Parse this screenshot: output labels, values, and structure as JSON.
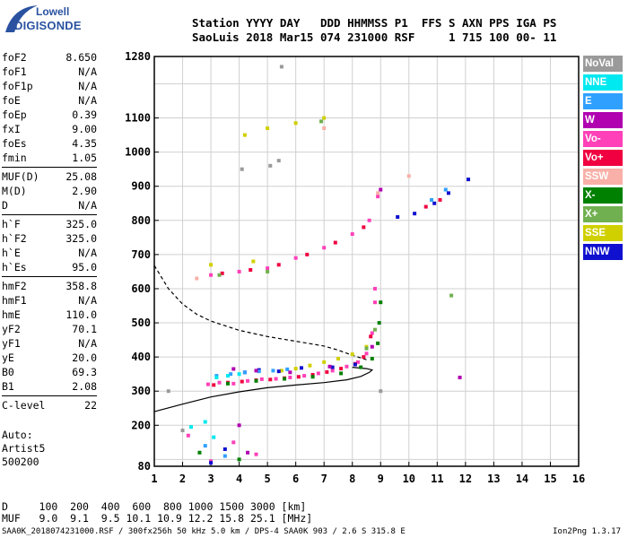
{
  "logo": {
    "line1": "Lowell",
    "line2": "DIGISONDE"
  },
  "header": {
    "line1": "Station YYYY DAY   DDD HHMMSS P1  FFS S AXN PPS IGA PS",
    "line2": "SaoLuis 2018 Mar15 074 231000 RSF     1 715 100 00- 11"
  },
  "params": {
    "g1": [
      {
        "name": "foF2",
        "value": "8.650"
      },
      {
        "name": "foF1",
        "value": "N/A"
      },
      {
        "name": "foF1p",
        "value": "N/A"
      },
      {
        "name": "foE",
        "value": "N/A"
      },
      {
        "name": "foEp",
        "value": "0.39"
      },
      {
        "name": "fxI",
        "value": "9.00"
      },
      {
        "name": "foEs",
        "value": "4.35"
      },
      {
        "name": "fmin",
        "value": "1.05"
      }
    ],
    "g2": [
      {
        "name": "MUF(D)",
        "value": "25.08"
      },
      {
        "name": "M(D)",
        "value": "2.90"
      },
      {
        "name": "D",
        "value": "N/A"
      }
    ],
    "g3": [
      {
        "name": "h`F",
        "value": "325.0"
      },
      {
        "name": "h`F2",
        "value": "325.0"
      },
      {
        "name": "h`E",
        "value": "N/A"
      },
      {
        "name": "h`Es",
        "value": "95.0"
      }
    ],
    "g4": [
      {
        "name": "hmF2",
        "value": "358.8"
      },
      {
        "name": "hmF1",
        "value": "N/A"
      },
      {
        "name": "hmE",
        "value": "110.0"
      },
      {
        "name": "yF2",
        "value": "70.1"
      },
      {
        "name": "yF1",
        "value": "N/A"
      },
      {
        "name": "yE",
        "value": "20.0"
      },
      {
        "name": "B0",
        "value": "69.3"
      },
      {
        "name": "B1",
        "value": "2.08"
      }
    ],
    "g5": [
      {
        "name": "C-level",
        "value": "22"
      }
    ]
  },
  "auto": {
    "l1": "Auto:",
    "l2": "Artist5",
    "l3": "500200"
  },
  "muf_table": {
    "row1": "D     100  200  400  600  800 1000 1500 3000 [km]",
    "row2": "MUF   9.0  9.1  9.5 10.1 10.9 12.2 15.8 25.1 [MHz]"
  },
  "footer": {
    "left": "SAA0K_2018074231000.RSF / 300fx256h 50 kHz 5.0 km / DPS-4 SAA0K 903 / 2.6 S 315.8 E",
    "right": "Ion2Png 1.3.17"
  },
  "legend": [
    {
      "label": "NoVal",
      "color": "#9a9a9a"
    },
    {
      "label": "NNE",
      "color": "#00e8f0"
    },
    {
      "label": "E",
      "color": "#30a0ff"
    },
    {
      "label": "W",
      "color": "#b000b0"
    },
    {
      "label": "Vo-",
      "color": "#ff40b8"
    },
    {
      "label": "Vo+",
      "color": "#f00040"
    },
    {
      "label": "SSW",
      "color": "#f8b0a8"
    },
    {
      "label": "X-",
      "color": "#008000"
    },
    {
      "label": "X+",
      "color": "#70b050"
    },
    {
      "label": "SSE",
      "color": "#d0d000"
    },
    {
      "label": "NNW",
      "color": "#1010d0"
    }
  ],
  "chart_data": {
    "type": "scatter",
    "title": "",
    "xlabel": "",
    "ylabel": "",
    "xlim": [
      1,
      16
    ],
    "ylim": [
      80,
      1280
    ],
    "x_ticks": [
      1,
      2,
      3,
      4,
      5,
      6,
      7,
      8,
      9,
      10,
      11,
      12,
      13,
      14,
      15,
      16
    ],
    "y_ticks": [
      80,
      200,
      300,
      400,
      500,
      600,
      700,
      800,
      900,
      1000,
      1100,
      1280
    ],
    "grid": true,
    "legend_position": "right",
    "series": [
      {
        "name": "Vo-",
        "color": "#ff40b8",
        "points": [
          [
            2.9,
            320
          ],
          [
            3.3,
            325
          ],
          [
            3.8,
            322
          ],
          [
            4.3,
            330
          ],
          [
            4.8,
            335
          ],
          [
            5.3,
            336
          ],
          [
            5.8,
            340
          ],
          [
            6.3,
            345
          ],
          [
            6.8,
            352
          ],
          [
            7.3,
            360
          ],
          [
            7.8,
            372
          ],
          [
            8.2,
            385
          ],
          [
            8.5,
            410
          ],
          [
            8.7,
            470
          ],
          [
            8.8,
            560
          ],
          [
            8.8,
            600
          ],
          [
            3.0,
            640
          ],
          [
            4.0,
            650
          ],
          [
            5.0,
            660
          ],
          [
            6.0,
            690
          ],
          [
            7.0,
            720
          ],
          [
            8.0,
            760
          ],
          [
            8.6,
            800
          ],
          [
            8.9,
            870
          ],
          [
            2.2,
            170
          ],
          [
            3.0,
            95
          ],
          [
            3.8,
            150
          ],
          [
            4.6,
            115
          ]
        ]
      },
      {
        "name": "Vo+",
        "color": "#f00040",
        "points": [
          [
            3.1,
            318
          ],
          [
            3.6,
            325
          ],
          [
            4.1,
            328
          ],
          [
            4.6,
            332
          ],
          [
            5.1,
            334
          ],
          [
            5.6,
            338
          ],
          [
            6.1,
            342
          ],
          [
            6.6,
            348
          ],
          [
            7.1,
            356
          ],
          [
            7.6,
            366
          ],
          [
            8.1,
            380
          ],
          [
            8.4,
            400
          ],
          [
            8.65,
            460
          ],
          [
            3.4,
            645
          ],
          [
            4.4,
            655
          ],
          [
            5.4,
            670
          ],
          [
            6.4,
            700
          ],
          [
            7.4,
            735
          ],
          [
            8.4,
            780
          ],
          [
            10.6,
            840
          ],
          [
            11.1,
            860
          ]
        ]
      },
      {
        "name": "X-",
        "color": "#008000",
        "points": [
          [
            3.6,
            322
          ],
          [
            4.6,
            330
          ],
          [
            5.6,
            336
          ],
          [
            6.6,
            342
          ],
          [
            7.6,
            352
          ],
          [
            8.3,
            370
          ],
          [
            8.7,
            395
          ],
          [
            8.9,
            440
          ],
          [
            8.95,
            500
          ],
          [
            9.0,
            560
          ],
          [
            2.6,
            120
          ],
          [
            4.0,
            100
          ]
        ]
      },
      {
        "name": "SSE",
        "color": "#d0d000",
        "points": [
          [
            5.5,
            360
          ],
          [
            6.0,
            366
          ],
          [
            6.5,
            375
          ],
          [
            7.0,
            385
          ],
          [
            7.5,
            395
          ],
          [
            8.0,
            408
          ],
          [
            8.5,
            430
          ],
          [
            4.2,
            1050
          ],
          [
            5.0,
            1070
          ],
          [
            6.0,
            1085
          ],
          [
            7.0,
            1100
          ],
          [
            3.0,
            670
          ],
          [
            4.5,
            680
          ]
        ]
      },
      {
        "name": "NNW",
        "color": "#1010d0",
        "points": [
          [
            4.2,
            355
          ],
          [
            4.7,
            362
          ],
          [
            5.4,
            358
          ],
          [
            6.2,
            368
          ],
          [
            7.3,
            370
          ],
          [
            8.1,
            378
          ],
          [
            9.6,
            810
          ],
          [
            10.2,
            820
          ],
          [
            10.9,
            850
          ],
          [
            11.4,
            880
          ],
          [
            12.1,
            920
          ],
          [
            3.0,
            90
          ],
          [
            3.5,
            130
          ]
        ]
      },
      {
        "name": "E",
        "color": "#30a0ff",
        "points": [
          [
            3.2,
            345
          ],
          [
            3.7,
            350
          ],
          [
            4.2,
            355
          ],
          [
            4.7,
            358
          ],
          [
            5.2,
            360
          ],
          [
            5.7,
            364
          ],
          [
            10.8,
            860
          ],
          [
            11.3,
            890
          ],
          [
            2.8,
            140
          ],
          [
            3.5,
            110
          ]
        ]
      },
      {
        "name": "W",
        "color": "#b000b0",
        "points": [
          [
            3.8,
            365
          ],
          [
            4.6,
            360
          ],
          [
            5.8,
            355
          ],
          [
            7.2,
            372
          ],
          [
            8.7,
            430
          ],
          [
            9.0,
            890
          ],
          [
            11.8,
            340
          ],
          [
            4.0,
            200
          ],
          [
            4.3,
            120
          ]
        ]
      },
      {
        "name": "NNE",
        "color": "#00e8f0",
        "points": [
          [
            3.2,
            340
          ],
          [
            3.6,
            345
          ],
          [
            4.0,
            350
          ],
          [
            2.3,
            195
          ],
          [
            2.8,
            210
          ],
          [
            3.1,
            165
          ]
        ]
      },
      {
        "name": "SSW",
        "color": "#f8b0a8",
        "points": [
          [
            10.0,
            930
          ],
          [
            8.9,
            880
          ],
          [
            2.5,
            630
          ],
          [
            7.0,
            1070
          ]
        ]
      },
      {
        "name": "X+",
        "color": "#70b050",
        "points": [
          [
            8.5,
            425
          ],
          [
            8.8,
            480
          ],
          [
            11.5,
            580
          ],
          [
            6.9,
            1090
          ],
          [
            3.3,
            640
          ],
          [
            5.0,
            650
          ]
        ]
      },
      {
        "name": "NoVal",
        "color": "#9a9a9a",
        "points": [
          [
            5.1,
            960
          ],
          [
            5.4,
            975
          ],
          [
            4.1,
            950
          ],
          [
            5.5,
            1250
          ],
          [
            1.5,
            300
          ],
          [
            2.0,
            185
          ],
          [
            9.0,
            300
          ]
        ]
      }
    ],
    "lines": [
      {
        "name": "profile",
        "style": "solid",
        "points": [
          [
            1,
            240
          ],
          [
            2,
            262
          ],
          [
            3,
            283
          ],
          [
            4,
            298
          ],
          [
            5,
            310
          ],
          [
            6,
            318
          ],
          [
            7,
            325
          ],
          [
            7.8,
            333
          ],
          [
            8.3,
            343
          ],
          [
            8.6,
            355
          ],
          [
            8.7,
            362
          ],
          [
            8.5,
            366
          ],
          [
            8.0,
            370
          ]
        ]
      },
      {
        "name": "dashed",
        "style": "dashed",
        "points": [
          [
            1,
            668
          ],
          [
            1.5,
            600
          ],
          [
            2,
            555
          ],
          [
            2.5,
            525
          ],
          [
            3,
            505
          ],
          [
            4,
            478
          ],
          [
            5,
            460
          ],
          [
            6,
            446
          ],
          [
            7,
            432
          ],
          [
            7.5,
            420
          ],
          [
            8,
            405
          ],
          [
            8.5,
            392
          ]
        ]
      }
    ]
  }
}
